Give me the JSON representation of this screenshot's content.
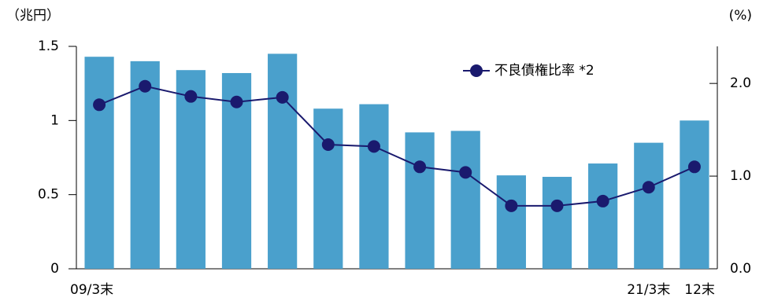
{
  "chart_data": {
    "type": "bar_line",
    "y_label": "（兆円）",
    "y2_label": "(%)",
    "categories": [
      "09/3末",
      null,
      null,
      null,
      null,
      null,
      null,
      null,
      null,
      null,
      null,
      null,
      "21/3末",
      "12末"
    ],
    "series": [
      {
        "type": "bar",
        "color": "#4aa0cc",
        "values": [
          1.43,
          1.4,
          1.34,
          1.32,
          1.45,
          1.08,
          1.11,
          0.92,
          0.93,
          0.63,
          0.62,
          0.71,
          0.85,
          1.0
        ]
      },
      {
        "type": "line",
        "name": "不良債権比率 *2",
        "color": "#1a1a6e",
        "axis": "y2",
        "values": [
          1.77,
          1.97,
          1.86,
          1.8,
          1.85,
          1.34,
          1.32,
          1.1,
          1.04,
          0.68,
          0.68,
          0.73,
          0.88,
          1.1
        ]
      }
    ],
    "ylim": [
      0,
      1.5
    ],
    "yticks": [
      0,
      0.5,
      1,
      1.5
    ],
    "y2lim": [
      0,
      2.4
    ],
    "y2ticks": [
      {
        "value": 0,
        "label": "0.0"
      },
      {
        "value": 1,
        "label": "1.0"
      },
      {
        "value": 2,
        "label": "2.0"
      }
    ],
    "grid": false,
    "legend": "top-right"
  }
}
